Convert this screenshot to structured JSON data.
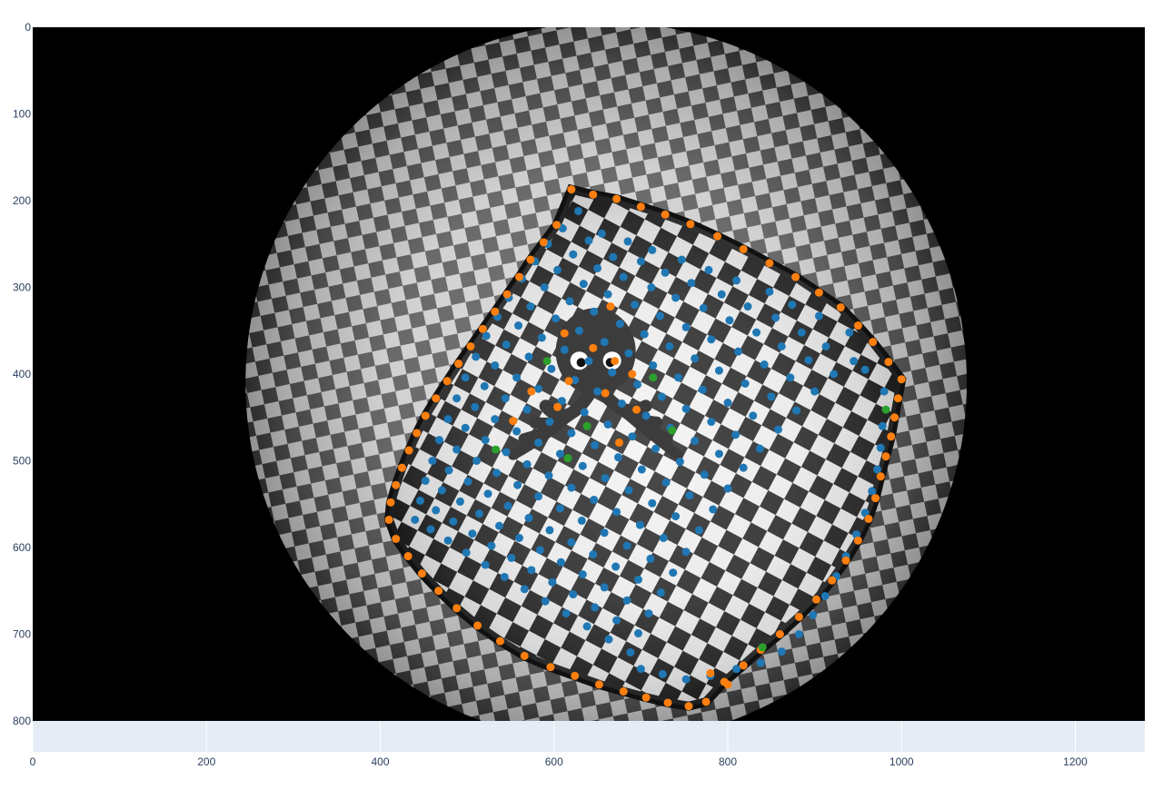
{
  "chart_data": {
    "type": "scatter",
    "title": "",
    "xlabel": "",
    "ylabel": "",
    "xlim": [
      0,
      1280
    ],
    "ylim": [
      800,
      0
    ],
    "x_ticks": [
      {
        "value": 0,
        "label": "0"
      },
      {
        "value": 200,
        "label": "200"
      },
      {
        "value": 400,
        "label": "400"
      },
      {
        "value": 600,
        "label": "600"
      },
      {
        "value": 800,
        "label": "800"
      },
      {
        "value": 1000,
        "label": "1000"
      },
      {
        "value": 1200,
        "label": "1200"
      }
    ],
    "y_ticks": [
      {
        "value": 0,
        "label": "0"
      },
      {
        "value": 100,
        "label": "100"
      },
      {
        "value": 200,
        "label": "200"
      },
      {
        "value": 300,
        "label": "300"
      },
      {
        "value": 400,
        "label": "400"
      },
      {
        "value": 500,
        "label": "500"
      },
      {
        "value": 600,
        "label": "600"
      },
      {
        "value": 700,
        "label": "700"
      },
      {
        "value": 800,
        "label": "800"
      }
    ],
    "background": "fisheye-checkerboard-image",
    "overlay_icon": "octopus-icon",
    "plot_bg_color": "#e5ecf6",
    "grid": true,
    "series": [
      {
        "color": "#1f77b4",
        "grid_corners": [
          [
            628,
            212
          ],
          [
            655,
            238
          ],
          [
            685,
            247
          ],
          [
            713,
            257
          ],
          [
            747,
            268
          ],
          [
            778,
            280
          ],
          [
            810,
            292
          ],
          [
            848,
            305
          ],
          [
            874,
            320
          ],
          [
            905,
            333
          ],
          [
            940,
            352
          ],
          [
            958,
            395
          ],
          [
            610,
            232
          ],
          [
            640,
            246
          ],
          [
            668,
            265
          ],
          [
            700,
            270
          ],
          [
            728,
            283
          ],
          [
            758,
            295
          ],
          [
            793,
            308
          ],
          [
            823,
            322
          ],
          [
            855,
            335
          ],
          [
            885,
            352
          ],
          [
            913,
            368
          ],
          [
            945,
            385
          ],
          [
            593,
            250
          ],
          [
            622,
            262
          ],
          [
            650,
            278
          ],
          [
            680,
            288
          ],
          [
            712,
            300
          ],
          [
            740,
            312
          ],
          [
            772,
            324
          ],
          [
            802,
            338
          ],
          [
            833,
            352
          ],
          [
            862,
            368
          ],
          [
            893,
            384
          ],
          [
            922,
            400
          ],
          [
            578,
            270
          ],
          [
            604,
            280
          ],
          [
            634,
            296
          ],
          [
            662,
            308
          ],
          [
            693,
            320
          ],
          [
            722,
            333
          ],
          [
            752,
            346
          ],
          [
            781,
            360
          ],
          [
            812,
            374
          ],
          [
            842,
            389
          ],
          [
            872,
            404
          ],
          [
            900,
            420
          ],
          [
            563,
            290
          ],
          [
            589,
            300
          ],
          [
            618,
            316
          ],
          [
            646,
            328
          ],
          [
            676,
            342
          ],
          [
            704,
            354
          ],
          [
            733,
            368
          ],
          [
            762,
            382
          ],
          [
            790,
            396
          ],
          [
            820,
            411
          ],
          [
            850,
            426
          ],
          [
            879,
            442
          ],
          [
            548,
            312
          ],
          [
            573,
            322
          ],
          [
            602,
            336
          ],
          [
            629,
            350
          ],
          [
            658,
            363
          ],
          [
            686,
            376
          ],
          [
            714,
            390
          ],
          [
            743,
            404
          ],
          [
            771,
            418
          ],
          [
            800,
            433
          ],
          [
            829,
            448
          ],
          [
            858,
            464
          ],
          [
            535,
            334
          ],
          [
            559,
            344
          ],
          [
            586,
            358
          ],
          [
            612,
            372
          ],
          [
            640,
            385
          ],
          [
            667,
            398
          ],
          [
            696,
            412
          ],
          [
            724,
            426
          ],
          [
            752,
            440
          ],
          [
            781,
            455
          ],
          [
            809,
            470
          ],
          [
            837,
            486
          ],
          [
            522,
            356
          ],
          [
            545,
            366
          ],
          [
            571,
            380
          ],
          [
            597,
            394
          ],
          [
            624,
            407
          ],
          [
            650,
            420
          ],
          [
            678,
            434
          ],
          [
            706,
            448
          ],
          [
            734,
            462
          ],
          [
            762,
            477
          ],
          [
            790,
            492
          ],
          [
            818,
            508
          ],
          [
            510,
            380
          ],
          [
            532,
            390
          ],
          [
            557,
            404
          ],
          [
            582,
            417
          ],
          [
            609,
            431
          ],
          [
            635,
            444
          ],
          [
            662,
            458
          ],
          [
            690,
            472
          ],
          [
            717,
            486
          ],
          [
            745,
            501
          ],
          [
            773,
            516
          ],
          [
            800,
            532
          ],
          [
            498,
            404
          ],
          [
            520,
            414
          ],
          [
            544,
            428
          ],
          [
            569,
            441
          ],
          [
            595,
            455
          ],
          [
            620,
            468
          ],
          [
            647,
            482
          ],
          [
            674,
            496
          ],
          [
            701,
            510
          ],
          [
            729,
            525
          ],
          [
            756,
            540
          ],
          [
            783,
            556
          ],
          [
            488,
            428
          ],
          [
            509,
            438
          ],
          [
            532,
            452
          ],
          [
            557,
            466
          ],
          [
            582,
            479
          ],
          [
            607,
            492
          ],
          [
            633,
            506
          ],
          [
            659,
            520
          ],
          [
            686,
            534
          ],
          [
            713,
            549
          ],
          [
            740,
            564
          ],
          [
            767,
            580
          ],
          [
            478,
            452
          ],
          [
            498,
            462
          ],
          [
            521,
            476
          ],
          [
            545,
            490
          ],
          [
            569,
            504
          ],
          [
            594,
            517
          ],
          [
            620,
            531
          ],
          [
            646,
            545
          ],
          [
            672,
            559
          ],
          [
            699,
            574
          ],
          [
            726,
            589
          ],
          [
            752,
            605
          ],
          [
            468,
            476
          ],
          [
            488,
            487
          ],
          [
            511,
            500
          ],
          [
            534,
            514
          ],
          [
            558,
            528
          ],
          [
            582,
            541
          ],
          [
            607,
            555
          ],
          [
            632,
            569
          ],
          [
            658,
            583
          ],
          [
            684,
            598
          ],
          [
            711,
            613
          ],
          [
            737,
            629
          ],
          [
            460,
            500
          ],
          [
            479,
            511
          ],
          [
            501,
            524
          ],
          [
            524,
            538
          ],
          [
            547,
            552
          ],
          [
            571,
            566
          ],
          [
            595,
            580
          ],
          [
            620,
            594
          ],
          [
            645,
            608
          ],
          [
            671,
            622
          ],
          [
            697,
            637
          ],
          [
            723,
            652
          ],
          [
            452,
            523
          ],
          [
            471,
            534
          ],
          [
            492,
            547
          ],
          [
            514,
            561
          ],
          [
            537,
            575
          ],
          [
            560,
            589
          ],
          [
            584,
            603
          ],
          [
            608,
            617
          ],
          [
            633,
            631
          ],
          [
            658,
            646
          ],
          [
            684,
            661
          ],
          [
            709,
            676
          ],
          [
            446,
            546
          ],
          [
            464,
            557
          ],
          [
            484,
            570
          ],
          [
            506,
            584
          ],
          [
            528,
            598
          ],
          [
            551,
            612
          ],
          [
            574,
            626
          ],
          [
            598,
            640
          ],
          [
            622,
            654
          ],
          [
            647,
            669
          ],
          [
            672,
            684
          ],
          [
            697,
            699
          ],
          [
            440,
            568
          ],
          [
            458,
            579
          ],
          [
            478,
            592
          ],
          [
            499,
            606
          ],
          [
            521,
            620
          ],
          [
            543,
            634
          ],
          [
            566,
            648
          ],
          [
            590,
            662
          ],
          [
            614,
            676
          ],
          [
            638,
            691
          ],
          [
            663,
            706
          ],
          [
            688,
            721
          ],
          [
            700,
            740
          ],
          [
            725,
            746
          ],
          [
            752,
            752
          ],
          [
            780,
            748
          ],
          [
            810,
            740
          ],
          [
            838,
            733
          ],
          [
            862,
            720
          ],
          [
            882,
            700
          ],
          [
            898,
            678
          ],
          [
            912,
            656
          ],
          [
            925,
            633
          ],
          [
            936,
            610
          ],
          [
            948,
            585
          ],
          [
            958,
            560
          ],
          [
            966,
            535
          ],
          [
            972,
            510
          ],
          [
            976,
            485
          ],
          [
            978,
            460
          ],
          [
            980,
            420
          ]
        ]
      },
      {
        "color": "#ff7f0e",
        "border": [
          [
            620,
            187
          ],
          [
            645,
            193
          ],
          [
            672,
            198
          ],
          [
            700,
            207
          ],
          [
            728,
            216
          ],
          [
            757,
            227
          ],
          [
            788,
            241
          ],
          [
            818,
            256
          ],
          [
            848,
            272
          ],
          [
            878,
            288
          ],
          [
            905,
            306
          ],
          [
            930,
            323
          ],
          [
            950,
            344
          ],
          [
            967,
            363
          ],
          [
            985,
            386
          ],
          [
            1000,
            406
          ],
          [
            996,
            428
          ],
          [
            992,
            450
          ],
          [
            988,
            472
          ],
          [
            982,
            495
          ],
          [
            976,
            518
          ],
          [
            970,
            543
          ],
          [
            962,
            567
          ],
          [
            950,
            592
          ],
          [
            936,
            615
          ],
          [
            920,
            638
          ],
          [
            902,
            660
          ],
          [
            882,
            680
          ],
          [
            860,
            700
          ],
          [
            838,
            718
          ],
          [
            818,
            736
          ],
          [
            796,
            755
          ],
          [
            775,
            778
          ],
          [
            755,
            783
          ],
          [
            731,
            779
          ],
          [
            706,
            773
          ],
          [
            680,
            766
          ],
          [
            652,
            758
          ],
          [
            624,
            748
          ],
          [
            596,
            738
          ],
          [
            566,
            725
          ],
          [
            538,
            708
          ],
          [
            512,
            690
          ],
          [
            488,
            670
          ],
          [
            467,
            650
          ],
          [
            448,
            630
          ],
          [
            432,
            610
          ],
          [
            418,
            590
          ],
          [
            410,
            568
          ],
          [
            412,
            548
          ],
          [
            418,
            528
          ],
          [
            425,
            508
          ],
          [
            433,
            488
          ],
          [
            442,
            468
          ],
          [
            452,
            448
          ],
          [
            464,
            428
          ],
          [
            477,
            408
          ],
          [
            490,
            388
          ],
          [
            504,
            368
          ],
          [
            518,
            348
          ],
          [
            532,
            328
          ],
          [
            546,
            308
          ],
          [
            560,
            288
          ],
          [
            573,
            268
          ],
          [
            588,
            248
          ],
          [
            603,
            228
          ]
        ],
        "interior": [
          [
            665,
            322
          ],
          [
            612,
            353
          ],
          [
            645,
            370
          ],
          [
            670,
            385
          ],
          [
            690,
            400
          ],
          [
            617,
            408
          ],
          [
            574,
            420
          ],
          [
            659,
            422
          ],
          [
            604,
            438
          ],
          [
            695,
            441
          ],
          [
            553,
            454
          ],
          [
            675,
            479
          ],
          [
            780,
            745
          ],
          [
            800,
            758
          ]
        ]
      },
      {
        "color": "#2ca02c",
        "points": [
          [
            592,
            385
          ],
          [
            714,
            404
          ],
          [
            982,
            441
          ],
          [
            638,
            460
          ],
          [
            736,
            465
          ],
          [
            533,
            487
          ],
          [
            616,
            497
          ],
          [
            840,
            715
          ]
        ]
      }
    ]
  }
}
